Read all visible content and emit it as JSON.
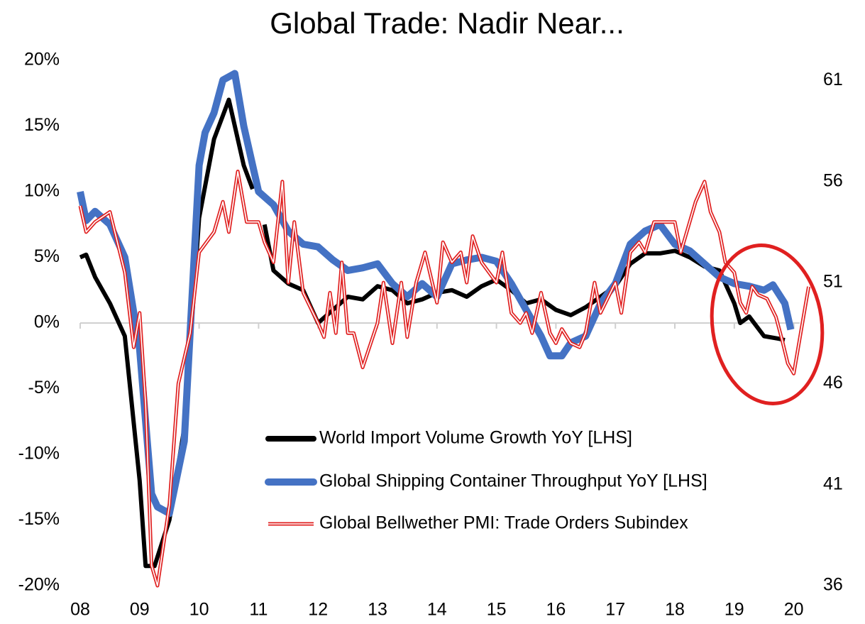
{
  "chart_data": {
    "type": "line",
    "title": "Global Trade: Nadir Near...",
    "xlim": [
      2008,
      2020.1
    ],
    "xticks": [
      {
        "value": 2008,
        "label": "08"
      },
      {
        "value": 2009,
        "label": "09"
      },
      {
        "value": 2010,
        "label": "10"
      },
      {
        "value": 2011,
        "label": "11"
      },
      {
        "value": 2012,
        "label": "12"
      },
      {
        "value": 2013,
        "label": "13"
      },
      {
        "value": 2014,
        "label": "14"
      },
      {
        "value": 2015,
        "label": "15"
      },
      {
        "value": 2016,
        "label": "16"
      },
      {
        "value": 2017,
        "label": "17"
      },
      {
        "value": 2018,
        "label": "18"
      },
      {
        "value": 2019,
        "label": "19"
      },
      {
        "value": 2020,
        "label": "20"
      }
    ],
    "ylim": [
      -20,
      20
    ],
    "yticks": [
      {
        "value": 20,
        "label": "20%"
      },
      {
        "value": 15,
        "label": "15%"
      },
      {
        "value": 10,
        "label": "10%"
      },
      {
        "value": 5,
        "label": "5%"
      },
      {
        "value": 0,
        "label": "0%"
      },
      {
        "value": -5,
        "label": "-5%"
      },
      {
        "value": -10,
        "label": "-10%"
      },
      {
        "value": -15,
        "label": "-15%"
      },
      {
        "value": -20,
        "label": "-20%"
      }
    ],
    "y2lim": [
      36,
      62
    ],
    "y2ticks": [
      61,
      56,
      51,
      46,
      41,
      36
    ],
    "grid": false,
    "series": [
      {
        "name": "World Import Volume Growth YoY [LHS]",
        "color": "#000000",
        "x": [
          2008.0,
          2008.1,
          2008.25,
          2008.5,
          2008.75,
          2009.0,
          2009.1,
          2009.25,
          2009.5,
          2009.75,
          2010.0,
          2010.25,
          2010.5,
          2010.75,
          2010.9,
          2011.0,
          2011.1,
          2011.25,
          2011.5,
          2011.75,
          2012.0,
          2012.25,
          2012.5,
          2012.75,
          2013.0,
          2013.25,
          2013.5,
          2013.75,
          2014.0,
          2014.25,
          2014.5,
          2014.75,
          2015.0,
          2015.25,
          2015.5,
          2015.75,
          2016.0,
          2016.25,
          2016.5,
          2016.75,
          2017.0,
          2017.25,
          2017.5,
          2017.75,
          2018.0,
          2018.25,
          2018.5,
          2018.75,
          2019.0,
          2019.1,
          2019.25,
          2019.5,
          2019.75,
          2019.85
        ],
        "values": [
          5,
          5.2,
          3.5,
          1.5,
          -1,
          -12,
          -18.5,
          -18.5,
          -15,
          -8,
          8,
          14,
          17,
          12,
          10.2,
          null,
          7.5,
          4,
          3,
          2.5,
          0,
          1,
          2,
          1.8,
          2.8,
          2.5,
          1.5,
          1.8,
          2.3,
          2.5,
          2,
          2.8,
          3.3,
          2.5,
          1.5,
          1.8,
          1,
          0.6,
          1.2,
          2,
          2.8,
          4.5,
          5.3,
          5.3,
          5.5,
          5,
          4.3,
          4,
          1.5,
          0,
          0.5,
          -1,
          -1.2,
          -1.3
        ]
      },
      {
        "name": "Global Shipping Container Throughput YoY [LHS]",
        "color": "#4472c4",
        "x": [
          2008.0,
          2008.1,
          2008.25,
          2008.5,
          2008.75,
          2009.0,
          2009.2,
          2009.3,
          2009.5,
          2009.75,
          2010.0,
          2010.1,
          2010.25,
          2010.4,
          2010.6,
          2010.75,
          2011.0,
          2011.25,
          2011.5,
          2011.75,
          2012.0,
          2012.25,
          2012.5,
          2012.75,
          2013.0,
          2013.25,
          2013.5,
          2013.75,
          2014.0,
          2014.25,
          2014.5,
          2014.75,
          2015.0,
          2015.25,
          2015.5,
          2015.75,
          2015.9,
          2016.1,
          2016.25,
          2016.5,
          2016.75,
          2017.0,
          2017.25,
          2017.5,
          2017.75,
          2018.0,
          2018.25,
          2018.5,
          2018.75,
          2019.0,
          2019.25,
          2019.5,
          2019.65,
          2019.85,
          2019.95
        ],
        "values": [
          10,
          7.8,
          8.5,
          7.5,
          5,
          -2,
          -13,
          -14,
          -14.5,
          -9,
          12,
          14.5,
          16,
          18.5,
          19,
          15,
          10,
          9,
          7,
          6,
          5.8,
          4.8,
          4,
          4.2,
          4.5,
          3,
          2,
          3,
          2,
          4.5,
          4.8,
          5,
          4.7,
          3,
          1,
          -1,
          -2.5,
          -2.5,
          -1.5,
          -1,
          1.5,
          3,
          6,
          7,
          7.5,
          6,
          5.5,
          4.5,
          3.5,
          3,
          2.8,
          2.5,
          2.9,
          1.5,
          -0.5
        ]
      },
      {
        "name": "Global Bellwether PMI: Trade Orders Subindex",
        "color": "#e02020",
        "axis": "y2",
        "x": [
          2008.0,
          2008.1,
          2008.25,
          2008.5,
          2008.75,
          2008.9,
          2009.0,
          2009.1,
          2009.2,
          2009.3,
          2009.5,
          2009.65,
          2009.85,
          2010.0,
          2010.25,
          2010.4,
          2010.5,
          2010.65,
          2010.8,
          2011.0,
          2011.1,
          2011.25,
          2011.4,
          2011.5,
          2011.6,
          2011.75,
          2012.0,
          2012.1,
          2012.2,
          2012.3,
          2012.4,
          2012.5,
          2012.6,
          2012.75,
          2013.0,
          2013.1,
          2013.25,
          2013.4,
          2013.5,
          2013.65,
          2013.8,
          2014.0,
          2014.1,
          2014.25,
          2014.4,
          2014.5,
          2014.6,
          2014.75,
          2015.0,
          2015.1,
          2015.25,
          2015.4,
          2015.5,
          2015.6,
          2015.75,
          2015.9,
          2016.0,
          2016.1,
          2016.25,
          2016.4,
          2016.5,
          2016.65,
          2016.75,
          2017.0,
          2017.1,
          2017.25,
          2017.4,
          2017.5,
          2017.65,
          2017.75,
          2018.0,
          2018.1,
          2018.2,
          2018.35,
          2018.5,
          2018.6,
          2018.75,
          2018.85,
          2019.0,
          2019.1,
          2019.2,
          2019.3,
          2019.4,
          2019.55,
          2019.7,
          2019.8,
          2019.9,
          2020.0,
          2020.25
        ],
        "values": [
          54.8,
          53.5,
          54,
          54.5,
          51.5,
          47.8,
          49.5,
          45,
          37,
          36,
          40,
          46,
          48.5,
          52.5,
          53.5,
          55,
          53.5,
          56.5,
          54,
          54,
          53,
          52,
          56,
          51,
          54,
          50.5,
          49,
          48.3,
          50.5,
          48.5,
          52,
          48.5,
          48.5,
          46.8,
          49,
          51,
          48,
          51,
          48.3,
          51,
          52.5,
          50,
          53,
          52,
          52.5,
          51,
          53.3,
          52,
          51,
          52.5,
          49.5,
          49,
          49.5,
          48.5,
          50.5,
          48.5,
          48,
          48.7,
          48,
          47.8,
          48.5,
          51,
          49.5,
          51,
          49.5,
          52.5,
          53,
          52.5,
          54,
          54,
          54,
          52.5,
          53.5,
          55,
          56,
          54.5,
          53.5,
          52,
          51.5,
          50,
          49.5,
          50.8,
          50.4,
          50.2,
          49.3,
          48.2,
          47,
          46.5,
          50.8
        ]
      }
    ]
  }
}
